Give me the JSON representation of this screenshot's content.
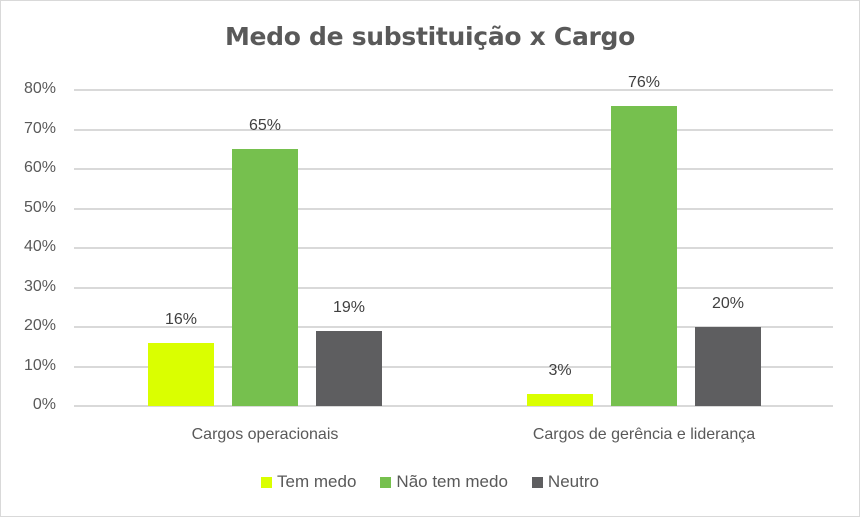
{
  "chart_data": {
    "type": "bar",
    "title": "Medo de substituição  x Cargo",
    "xlabel": "",
    "ylabel": "",
    "ylim": [
      0,
      0.8
    ],
    "yticks": [
      "0%",
      "10%",
      "20%",
      "30%",
      "40%",
      "50%",
      "60%",
      "70%",
      "80%"
    ],
    "grid": true,
    "legend_position": "bottom",
    "categories": [
      "Cargos operacionais",
      "Cargos de gerência e liderança"
    ],
    "series": [
      {
        "name": "Tem medo",
        "color": "#DAFF00",
        "values": [
          0.16,
          0.03
        ],
        "labels": [
          "16%",
          "3%"
        ]
      },
      {
        "name": "Não tem medo",
        "color": "#76C04E",
        "values": [
          0.65,
          0.76
        ],
        "labels": [
          "65%",
          "76%"
        ]
      },
      {
        "name": "Neutro",
        "color": "#5E5E60",
        "values": [
          0.19,
          0.2
        ],
        "labels": [
          "19%",
          "20%"
        ]
      }
    ]
  }
}
